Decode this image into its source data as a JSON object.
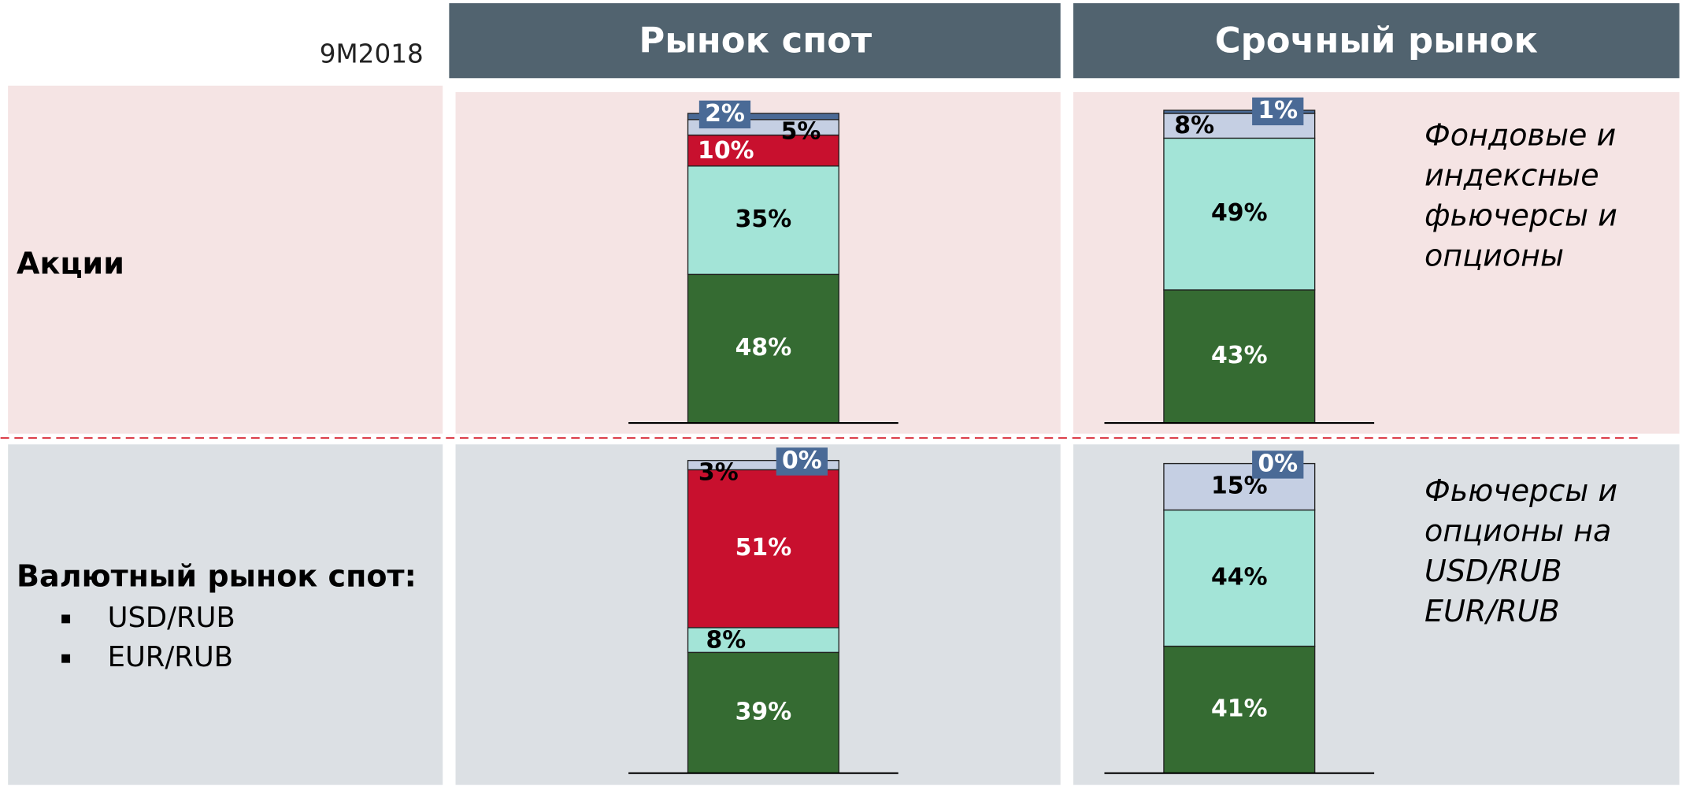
{
  "period": "9M2018",
  "columns": [
    "Рынок спот",
    "Срочный рынок"
  ],
  "rows": [
    {
      "label": "Акции",
      "items": [],
      "description": [
        "Фондовые и",
        "индексные",
        "фьючерсы и",
        "опционы"
      ]
    },
    {
      "label": "Валютный рынок спот:",
      "items": [
        "USD/RUB",
        "EUR/RUB"
      ],
      "description": [
        "Фьючерсы и",
        "опционы на",
        "USD/RUB",
        "EUR/RUB"
      ]
    }
  ],
  "chart_data": [
    {
      "type": "stacked_bar",
      "values": [
        48,
        35,
        10,
        5,
        2
      ],
      "value_labels": [
        "48%",
        "35%",
        "10%",
        "5%",
        "2%"
      ],
      "colors": [
        "#356b32",
        "#a3e4d7",
        "#c8102e",
        "#c5cfe3",
        "#4a6a96"
      ],
      "ylim": [
        0,
        101
      ]
    },
    {
      "type": "stacked_bar",
      "values": [
        43,
        49,
        8,
        1
      ],
      "value_labels": [
        "43%",
        "49%",
        "8%",
        "1%"
      ],
      "colors": [
        "#356b32",
        "#a3e4d7",
        "#c5cfe3",
        "#4a6a96"
      ],
      "ylim": [
        0,
        101
      ]
    },
    {
      "type": "stacked_bar",
      "values": [
        39,
        8,
        51,
        3,
        0
      ],
      "value_labels": [
        "39%",
        "8%",
        "51%",
        "3%",
        "0%"
      ],
      "colors": [
        "#356b32",
        "#a3e4d7",
        "#c8102e",
        "#c5cfe3",
        "#4a6a96"
      ],
      "ylim": [
        0,
        101
      ]
    },
    {
      "type": "stacked_bar",
      "values": [
        41,
        44,
        15,
        0
      ],
      "value_labels": [
        "41%",
        "44%",
        "15%",
        "0%"
      ],
      "colors": [
        "#356b32",
        "#a3e4d7",
        "#c5cfe3",
        "#4a6a96"
      ],
      "ylim": [
        0,
        101
      ]
    }
  ]
}
